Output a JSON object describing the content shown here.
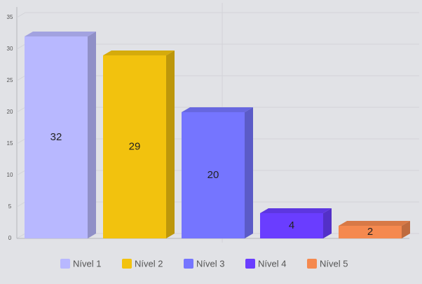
{
  "chart_data": {
    "type": "bar",
    "categories": [
      "Nível 1",
      "Nível 2",
      "Nível 3",
      "Nível 4",
      "Nível 5"
    ],
    "values": [
      32,
      29,
      20,
      4,
      2
    ],
    "colors": [
      "#b8b8ff",
      "#f2c20e",
      "#7575ff",
      "#6a3dff",
      "#f5894f"
    ],
    "ylim": [
      0,
      35
    ],
    "yticks": [
      0,
      5,
      10,
      15,
      20,
      25,
      30,
      35
    ],
    "grid": true,
    "legend": "bottom"
  }
}
